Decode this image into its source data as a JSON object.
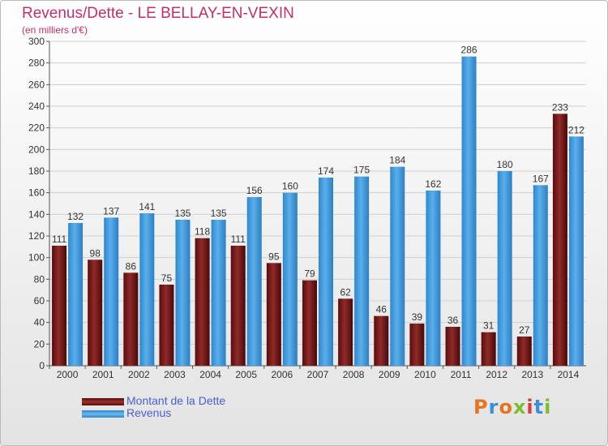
{
  "title": "Revenus/Dette - LE BELLAY-EN-VEXIN",
  "subtitle": "(en milliers d'€)",
  "logo_text": "Proxiti",
  "colors": {
    "title": "#c0306a",
    "debt": "#7a1a1a",
    "revenue": "#3b96d9",
    "legend_text": "#4a5fd3"
  },
  "chart_data": {
    "type": "bar",
    "title": "Revenus/Dette - LE BELLAY-EN-VEXIN",
    "ylabel": "(en milliers d'€)",
    "xlabel": "",
    "ylim": [
      0,
      300
    ],
    "yticks": [
      0,
      20,
      40,
      60,
      80,
      100,
      120,
      140,
      160,
      180,
      200,
      220,
      240,
      260,
      280,
      300
    ],
    "grid": true,
    "legend_position": "bottom-left",
    "categories": [
      "2000",
      "2001",
      "2002",
      "2003",
      "2004",
      "2005",
      "2006",
      "2007",
      "2008",
      "2009",
      "2010",
      "2011",
      "2012",
      "2013",
      "2014"
    ],
    "series": [
      {
        "name": "Montant de la Dette",
        "values": [
          111,
          98,
          86,
          75,
          118,
          111,
          95,
          79,
          62,
          46,
          39,
          36,
          31,
          27,
          233
        ]
      },
      {
        "name": "Revenus",
        "values": [
          132,
          137,
          141,
          135,
          135,
          156,
          160,
          174,
          175,
          184,
          162,
          286,
          180,
          167,
          212
        ]
      }
    ]
  }
}
